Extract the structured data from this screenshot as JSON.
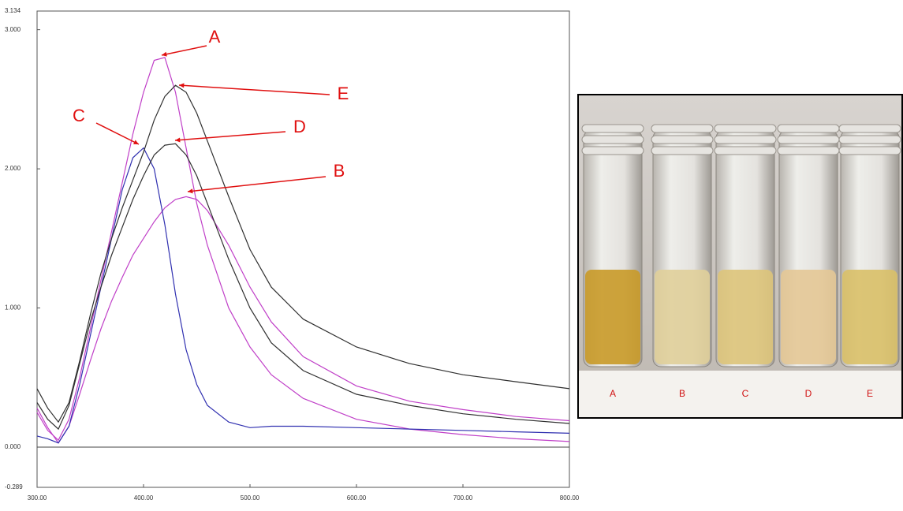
{
  "chart_data": {
    "type": "line",
    "x": [
      300,
      310,
      320,
      330,
      340,
      350,
      360,
      370,
      380,
      390,
      400,
      410,
      420,
      430,
      440,
      450,
      460,
      480,
      500,
      520,
      550,
      600,
      650,
      700,
      750,
      800
    ],
    "series": [
      {
        "name": "A",
        "color": "#c040c8",
        "values": [
          0.25,
          0.12,
          0.05,
          0.2,
          0.5,
          0.85,
          1.2,
          1.55,
          1.9,
          2.25,
          2.55,
          2.78,
          2.8,
          2.55,
          2.15,
          1.75,
          1.45,
          1.0,
          0.72,
          0.52,
          0.35,
          0.2,
          0.13,
          0.09,
          0.06,
          0.04
        ]
      },
      {
        "name": "B",
        "color": "#c040c8",
        "values": [
          0.28,
          0.14,
          0.03,
          0.15,
          0.38,
          0.62,
          0.85,
          1.05,
          1.22,
          1.38,
          1.5,
          1.62,
          1.72,
          1.78,
          1.8,
          1.78,
          1.7,
          1.45,
          1.15,
          0.9,
          0.65,
          0.44,
          0.33,
          0.27,
          0.22,
          0.19
        ]
      },
      {
        "name": "C",
        "color": "#3030b0",
        "values": [
          0.08,
          0.06,
          0.03,
          0.15,
          0.45,
          0.8,
          1.15,
          1.5,
          1.85,
          2.08,
          2.15,
          2.0,
          1.6,
          1.1,
          0.7,
          0.45,
          0.3,
          0.18,
          0.14,
          0.15,
          0.15,
          0.14,
          0.13,
          0.12,
          0.11,
          0.1
        ]
      },
      {
        "name": "D",
        "color": "#303030",
        "values": [
          0.32,
          0.2,
          0.13,
          0.3,
          0.6,
          0.9,
          1.15,
          1.38,
          1.58,
          1.78,
          1.95,
          2.1,
          2.17,
          2.18,
          2.1,
          1.95,
          1.75,
          1.35,
          1.0,
          0.75,
          0.55,
          0.38,
          0.3,
          0.24,
          0.2,
          0.17
        ]
      },
      {
        "name": "E",
        "color": "#303030",
        "values": [
          0.42,
          0.28,
          0.18,
          0.32,
          0.62,
          0.95,
          1.25,
          1.5,
          1.72,
          1.92,
          2.12,
          2.35,
          2.52,
          2.6,
          2.55,
          2.4,
          2.2,
          1.8,
          1.42,
          1.15,
          0.92,
          0.72,
          0.6,
          0.52,
          0.47,
          0.42
        ]
      }
    ],
    "xlim": [
      300,
      800
    ],
    "xticks": [
      {
        "value": 300,
        "label": "300.00"
      },
      {
        "value": 400,
        "label": "400.00"
      },
      {
        "value": 500,
        "label": "500.00"
      },
      {
        "value": 600,
        "label": "600.00"
      },
      {
        "value": 700,
        "label": "700.00"
      },
      {
        "value": 800,
        "label": "800.00"
      }
    ],
    "ylim": [
      -0.289,
      3.134
    ],
    "yticks": [
      -0.289,
      {
        "value": 0,
        "label": "0.000"
      },
      {
        "value": 1,
        "label": "1.000"
      },
      {
        "value": 2,
        "label": "2.000"
      },
      {
        "value": 3,
        "label": "3.000"
      },
      3.134
    ],
    "annotations": [
      "A",
      "E",
      "D",
      "C",
      "B"
    ]
  },
  "photo_labels": [
    "A",
    "B",
    "C",
    "D",
    "E"
  ]
}
